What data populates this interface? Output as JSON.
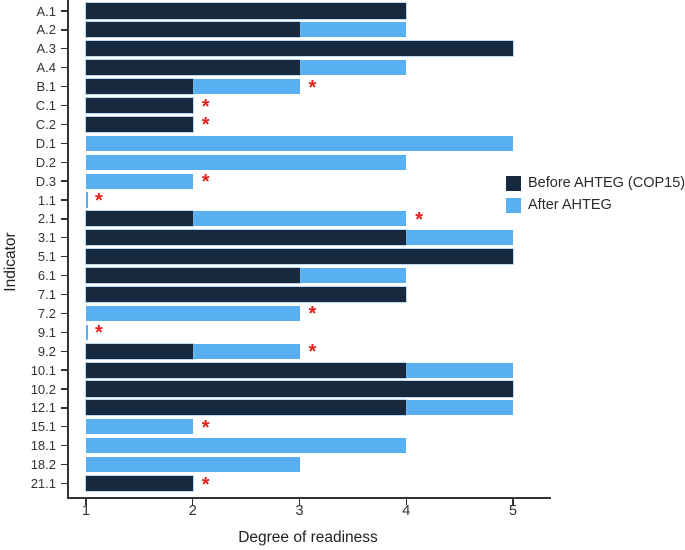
{
  "chart_data": {
    "type": "bar",
    "orientation": "horizontal",
    "title": "",
    "xlabel": "Degree of readiness",
    "ylabel": "Indicator",
    "xlim": [
      1,
      5
    ],
    "x_ticks": [
      "1",
      "2",
      "3",
      "4",
      "5"
    ],
    "grid": false,
    "significance_marker": "*",
    "colors": {
      "before": "#17293E",
      "after": "#58AFF2",
      "marker": "#E3211E"
    },
    "legend": {
      "position": "center-right",
      "entries": [
        {
          "label": "Before AHTEG (COP15)",
          "color": "#17293E"
        },
        {
          "label": "After AHTEG",
          "color": "#58AFF2"
        }
      ]
    },
    "indicators": [
      {
        "label": "A.1",
        "before": 4,
        "after": 4,
        "star": false
      },
      {
        "label": "A.2",
        "before": 3,
        "after": 4,
        "star": false
      },
      {
        "label": "A.3",
        "before": 5,
        "after": 5,
        "star": false
      },
      {
        "label": "A.4",
        "before": 3,
        "after": 4,
        "star": false
      },
      {
        "label": "B.1",
        "before": 2,
        "after": 3,
        "star": true
      },
      {
        "label": "C.1",
        "before": 2,
        "after": 2,
        "star": true
      },
      {
        "label": "C.2",
        "before": 2,
        "after": 2,
        "star": true
      },
      {
        "label": "D.1",
        "before": 1,
        "after": 5,
        "star": false
      },
      {
        "label": "D.2",
        "before": 1,
        "after": 4,
        "star": false
      },
      {
        "label": "D.3",
        "before": 1,
        "after": 2,
        "star": true
      },
      {
        "label": "1.1",
        "before": 1,
        "after": 1,
        "star": true
      },
      {
        "label": "2.1",
        "before": 2,
        "after": 4,
        "star": true
      },
      {
        "label": "3.1",
        "before": 4,
        "after": 5,
        "star": false
      },
      {
        "label": "5.1",
        "before": 5,
        "after": 5,
        "star": false
      },
      {
        "label": "6.1",
        "before": 3,
        "after": 4,
        "star": false
      },
      {
        "label": "7.1",
        "before": 4,
        "after": 4,
        "star": false
      },
      {
        "label": "7.2",
        "before": 1,
        "after": 3,
        "star": true
      },
      {
        "label": "9.1",
        "before": 1,
        "after": 1,
        "star": true
      },
      {
        "label": "9.2",
        "before": 2,
        "after": 3,
        "star": true
      },
      {
        "label": "10.1",
        "before": 4,
        "after": 5,
        "star": false
      },
      {
        "label": "10.2",
        "before": 5,
        "after": 5,
        "star": false
      },
      {
        "label": "12.1",
        "before": 4,
        "after": 5,
        "star": false
      },
      {
        "label": "15.1",
        "before": 1,
        "after": 2,
        "star": true
      },
      {
        "label": "18.1",
        "before": 1,
        "after": 4,
        "star": false
      },
      {
        "label": "18.2",
        "before": 1,
        "after": 3,
        "star": false
      },
      {
        "label": "21.1",
        "before": 2,
        "after": 2,
        "star": true
      }
    ]
  }
}
